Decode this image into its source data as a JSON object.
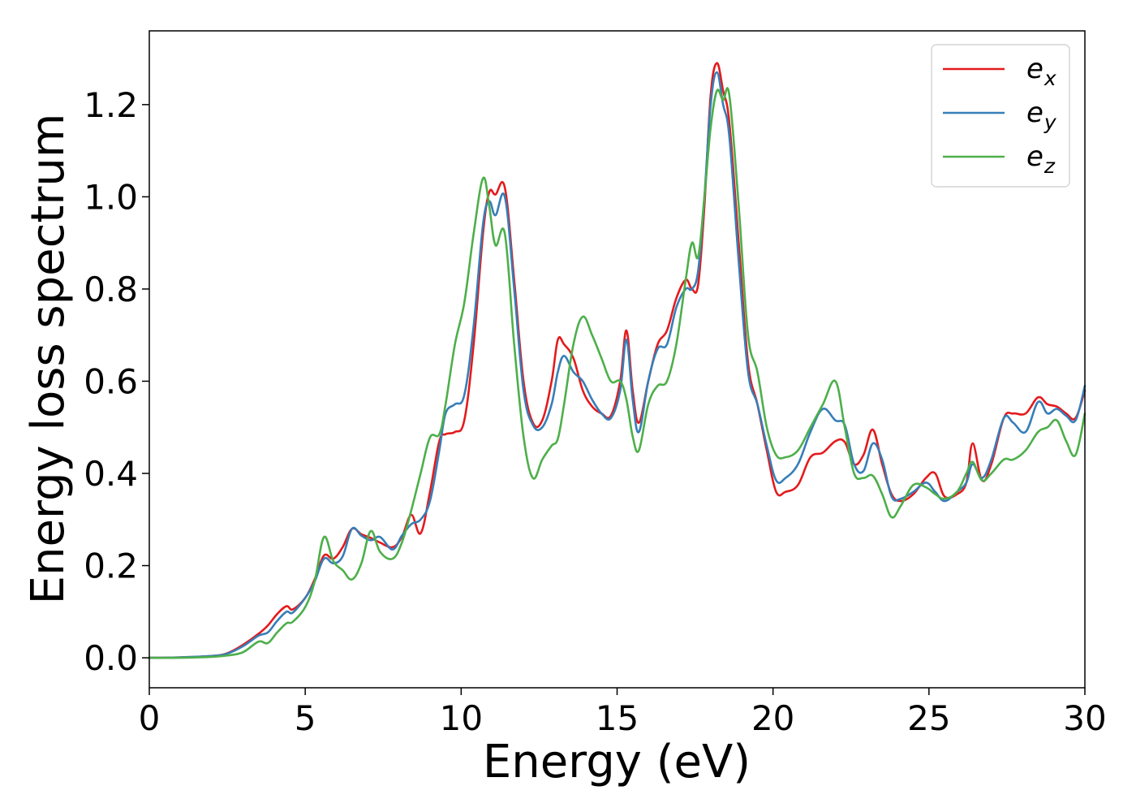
{
  "chart_data": {
    "type": "line",
    "title": "",
    "xlabel": "Energy (eV)",
    "ylabel": "Energy loss spectrum",
    "xlim": [
      0,
      30
    ],
    "ylim": [
      -0.065,
      1.36
    ],
    "xticks": [
      0,
      5,
      10,
      15,
      20,
      25,
      30
    ],
    "xtick_labels": [
      "0",
      "5",
      "10",
      "15",
      "20",
      "25",
      "30"
    ],
    "yticks": [
      0.0,
      0.2,
      0.4,
      0.6,
      0.8,
      1.0,
      1.2
    ],
    "ytick_labels": [
      "0.0",
      "0.2",
      "0.4",
      "0.6",
      "0.8",
      "1.0",
      "1.2"
    ],
    "grid": false,
    "legend_position": "top-right",
    "series": [
      {
        "name": "e_x",
        "legend_base": "e",
        "legend_sub": "x",
        "color": "#e41a1c",
        "x": [
          0,
          1,
          2,
          2.5,
          3,
          3.5,
          3.8,
          4.1,
          4.4,
          4.6,
          5.0,
          5.3,
          5.6,
          5.9,
          6.2,
          6.5,
          6.8,
          7.1,
          7.4,
          7.8,
          8.1,
          8.4,
          8.7,
          9.0,
          9.3,
          9.5,
          9.8,
          10.1,
          10.4,
          10.7,
          10.9,
          11.1,
          11.4,
          11.7,
          12.0,
          12.3,
          12.6,
          12.9,
          13.1,
          13.3,
          13.6,
          13.9,
          14.2,
          14.5,
          14.8,
          15.1,
          15.3,
          15.5,
          15.7,
          16.0,
          16.3,
          16.6,
          16.9,
          17.2,
          17.4,
          17.6,
          17.8,
          18.0,
          18.2,
          18.4,
          18.6,
          18.9,
          19.2,
          19.5,
          19.8,
          20.1,
          20.4,
          20.8,
          21.2,
          21.6,
          22.0,
          22.3,
          22.6,
          22.9,
          23.2,
          23.5,
          23.8,
          24.1,
          24.5,
          24.9,
          25.2,
          25.5,
          25.9,
          26.2,
          26.4,
          26.7,
          27.0,
          27.4,
          27.7,
          28.1,
          28.5,
          28.8,
          29.1,
          29.4,
          29.7,
          30.0
        ],
        "y": [
          0.0,
          0.001,
          0.004,
          0.01,
          0.028,
          0.052,
          0.07,
          0.095,
          0.112,
          0.105,
          0.13,
          0.17,
          0.222,
          0.215,
          0.24,
          0.28,
          0.268,
          0.26,
          0.25,
          0.24,
          0.262,
          0.31,
          0.27,
          0.36,
          0.47,
          0.485,
          0.49,
          0.515,
          0.68,
          0.92,
          1.01,
          1.005,
          1.02,
          0.82,
          0.6,
          0.51,
          0.515,
          0.6,
          0.69,
          0.68,
          0.65,
          0.58,
          0.545,
          0.53,
          0.525,
          0.6,
          0.71,
          0.58,
          0.51,
          0.6,
          0.68,
          0.71,
          0.78,
          0.82,
          0.8,
          0.81,
          0.98,
          1.22,
          1.29,
          1.23,
          1.16,
          0.9,
          0.64,
          0.55,
          0.45,
          0.36,
          0.36,
          0.375,
          0.435,
          0.445,
          0.47,
          0.468,
          0.42,
          0.44,
          0.495,
          0.42,
          0.355,
          0.34,
          0.355,
          0.39,
          0.4,
          0.35,
          0.355,
          0.38,
          0.465,
          0.385,
          0.42,
          0.52,
          0.53,
          0.53,
          0.565,
          0.55,
          0.545,
          0.53,
          0.52,
          0.58
        ]
      },
      {
        "name": "e_y",
        "legend_base": "e",
        "legend_sub": "y",
        "color": "#377eb8",
        "x": [
          0,
          1,
          2,
          2.5,
          3,
          3.5,
          3.8,
          4.1,
          4.4,
          4.6,
          5.0,
          5.3,
          5.6,
          5.9,
          6.2,
          6.5,
          6.8,
          7.1,
          7.4,
          7.8,
          8.1,
          8.4,
          8.7,
          9.0,
          9.3,
          9.5,
          9.8,
          10.1,
          10.4,
          10.7,
          10.9,
          11.1,
          11.4,
          11.7,
          12.0,
          12.3,
          12.6,
          12.9,
          13.1,
          13.3,
          13.6,
          13.9,
          14.2,
          14.5,
          14.8,
          15.1,
          15.3,
          15.5,
          15.7,
          16.0,
          16.3,
          16.6,
          16.9,
          17.2,
          17.4,
          17.6,
          17.8,
          18.0,
          18.2,
          18.4,
          18.6,
          18.9,
          19.2,
          19.5,
          19.8,
          20.1,
          20.4,
          20.8,
          21.2,
          21.6,
          22.0,
          22.3,
          22.6,
          22.9,
          23.2,
          23.5,
          23.8,
          24.1,
          24.5,
          24.9,
          25.2,
          25.5,
          25.9,
          26.2,
          26.4,
          26.7,
          27.0,
          27.4,
          27.7,
          28.1,
          28.5,
          28.8,
          29.1,
          29.4,
          29.7,
          30.0
        ],
        "y": [
          0.0,
          0.001,
          0.004,
          0.009,
          0.025,
          0.048,
          0.055,
          0.08,
          0.1,
          0.098,
          0.13,
          0.165,
          0.215,
          0.205,
          0.22,
          0.28,
          0.265,
          0.255,
          0.262,
          0.235,
          0.265,
          0.29,
          0.3,
          0.34,
          0.45,
          0.53,
          0.55,
          0.57,
          0.72,
          0.94,
          0.99,
          0.96,
          1.0,
          0.8,
          0.58,
          0.505,
          0.5,
          0.55,
          0.62,
          0.655,
          0.62,
          0.6,
          0.56,
          0.53,
          0.52,
          0.58,
          0.69,
          0.56,
          0.49,
          0.6,
          0.67,
          0.68,
          0.76,
          0.8,
          0.8,
          0.84,
          1.0,
          1.2,
          1.27,
          1.2,
          1.13,
          0.86,
          0.62,
          0.55,
          0.46,
          0.385,
          0.39,
          0.42,
          0.49,
          0.54,
          0.515,
          0.505,
          0.42,
          0.405,
          0.465,
          0.43,
          0.35,
          0.345,
          0.36,
          0.38,
          0.36,
          0.34,
          0.36,
          0.38,
          0.42,
          0.39,
          0.43,
          0.52,
          0.51,
          0.49,
          0.555,
          0.53,
          0.54,
          0.525,
          0.515,
          0.59
        ]
      },
      {
        "name": "e_z",
        "legend_base": "e",
        "legend_sub": "z",
        "color": "#4daf4a",
        "x": [
          0,
          1,
          2,
          2.5,
          3,
          3.5,
          3.8,
          4.1,
          4.4,
          4.6,
          5.0,
          5.3,
          5.6,
          5.9,
          6.2,
          6.5,
          6.8,
          7.1,
          7.4,
          7.8,
          8.1,
          8.4,
          8.7,
          9.0,
          9.3,
          9.5,
          9.8,
          10.1,
          10.4,
          10.7,
          10.9,
          11.1,
          11.4,
          11.7,
          12.0,
          12.3,
          12.6,
          12.9,
          13.1,
          13.3,
          13.6,
          13.9,
          14.2,
          14.5,
          14.8,
          15.1,
          15.3,
          15.5,
          15.7,
          16.0,
          16.3,
          16.6,
          16.9,
          17.2,
          17.4,
          17.6,
          17.8,
          18.0,
          18.2,
          18.4,
          18.6,
          18.9,
          19.2,
          19.5,
          19.8,
          20.1,
          20.4,
          20.8,
          21.2,
          21.6,
          22.0,
          22.3,
          22.6,
          22.9,
          23.2,
          23.5,
          23.8,
          24.1,
          24.5,
          24.9,
          25.2,
          25.5,
          25.9,
          26.2,
          26.4,
          26.7,
          27.0,
          27.4,
          27.7,
          28.1,
          28.5,
          28.8,
          29.1,
          29.4,
          29.7,
          30.0
        ],
        "y": [
          0.0,
          0.0,
          0.002,
          0.005,
          0.012,
          0.035,
          0.032,
          0.055,
          0.075,
          0.078,
          0.11,
          0.165,
          0.262,
          0.21,
          0.19,
          0.17,
          0.205,
          0.275,
          0.23,
          0.215,
          0.25,
          0.32,
          0.4,
          0.478,
          0.485,
          0.55,
          0.68,
          0.77,
          0.92,
          1.04,
          0.98,
          0.895,
          0.92,
          0.68,
          0.48,
          0.39,
          0.43,
          0.46,
          0.475,
          0.55,
          0.68,
          0.74,
          0.7,
          0.65,
          0.6,
          0.6,
          0.56,
          0.48,
          0.45,
          0.55,
          0.59,
          0.6,
          0.68,
          0.82,
          0.9,
          0.87,
          1.0,
          1.15,
          1.23,
          1.21,
          1.22,
          0.98,
          0.7,
          0.62,
          0.5,
          0.44,
          0.435,
          0.45,
          0.5,
          0.55,
          0.6,
          0.5,
          0.4,
          0.39,
          0.395,
          0.355,
          0.305,
          0.33,
          0.375,
          0.37,
          0.355,
          0.345,
          0.36,
          0.4,
          0.425,
          0.385,
          0.4,
          0.43,
          0.43,
          0.45,
          0.49,
          0.5,
          0.515,
          0.47,
          0.44,
          0.53
        ]
      }
    ]
  }
}
